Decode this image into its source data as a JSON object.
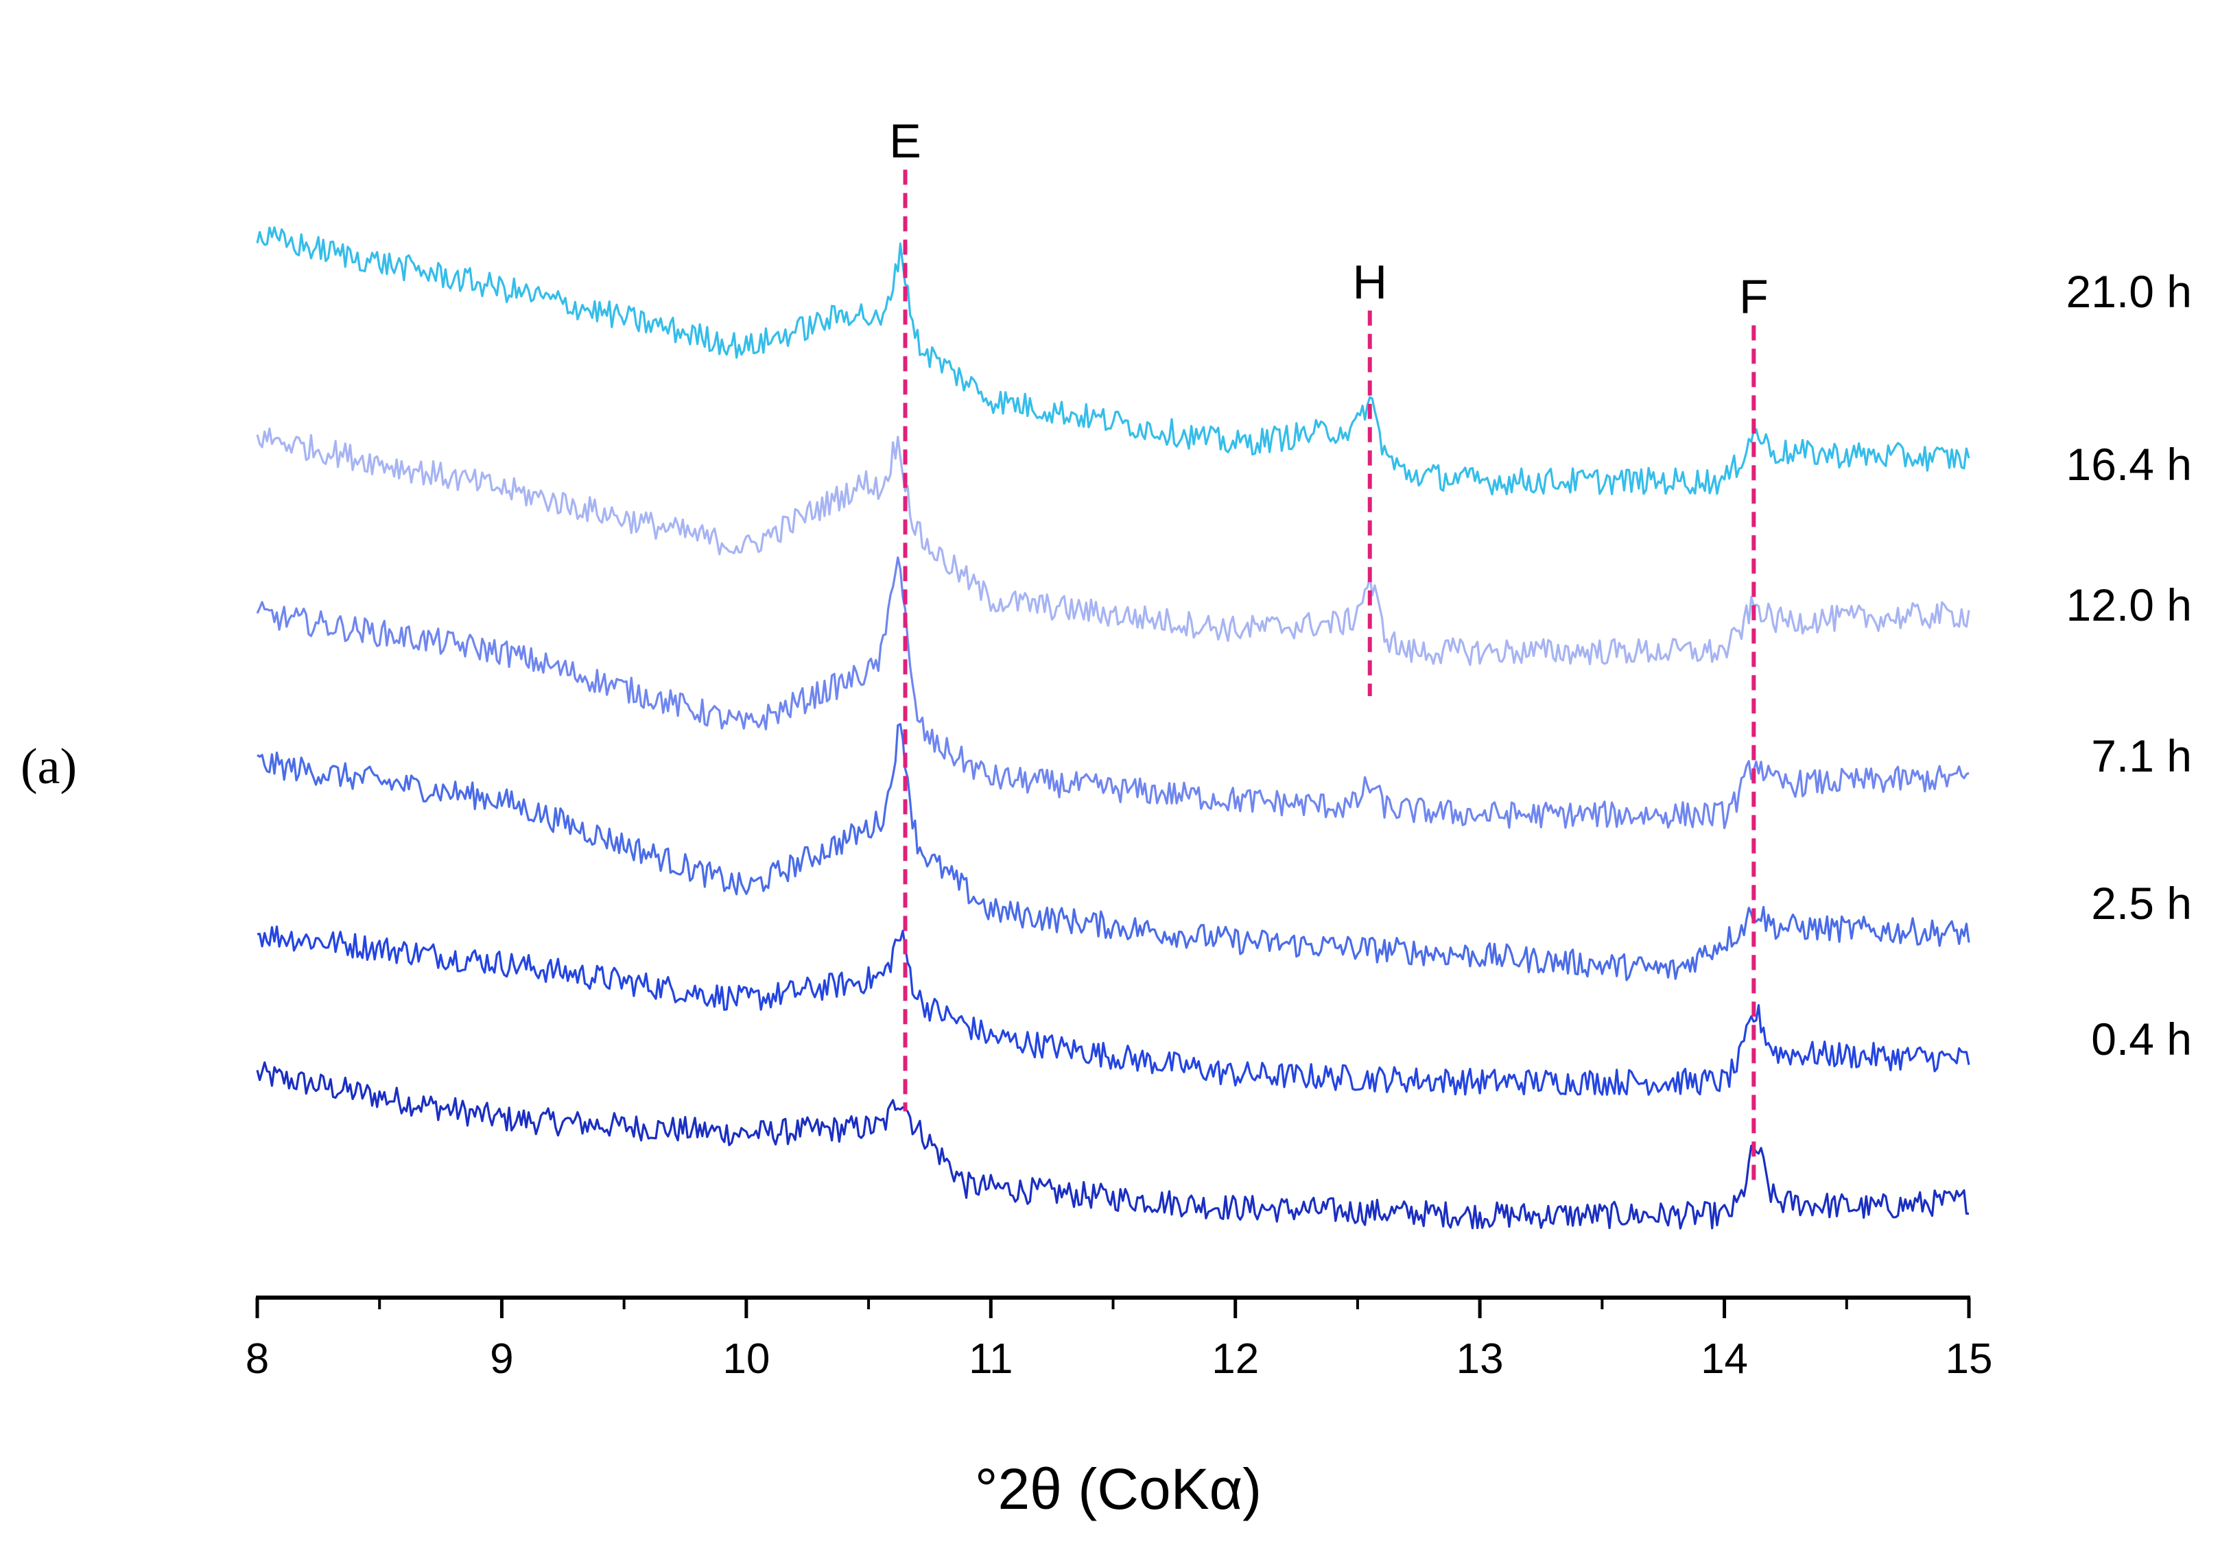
{
  "panel_label": "(a)",
  "chart_data": {
    "type": "line",
    "title": "",
    "xlabel": "°2θ (CoKα)",
    "ylabel": "",
    "xlim": [
      8,
      15
    ],
    "ylim": [
      0,
      8
    ],
    "x_ticks": [
      8,
      9,
      10,
      11,
      12,
      13,
      14,
      15
    ],
    "x_tick_labels": [
      "8",
      "9",
      "10",
      "11",
      "12",
      "13",
      "14",
      "15"
    ],
    "x_minor_tick_step": 0.5,
    "grid": false,
    "noise_amplitude": 0.09,
    "series": [
      {
        "name": "0.4 h",
        "color": "#1a2fc2",
        "opacity": 1.0,
        "profile": [
          [
            8,
            1.45
          ],
          [
            9,
            1.15
          ],
          [
            10,
            1.05
          ],
          [
            10.6,
            1.1
          ],
          [
            10.72,
            1.05
          ],
          [
            10.9,
            0.7
          ],
          [
            12,
            0.55
          ],
          [
            13,
            0.5
          ],
          [
            14,
            0.5
          ],
          [
            14.1,
            0.6
          ],
          [
            14.6,
            0.55
          ],
          [
            15,
            0.6
          ]
        ],
        "peaks": [
          {
            "x": 10.63,
            "h": 0.2
          },
          {
            "x": 14.13,
            "h": 0.35
          }
        ]
      },
      {
        "name": "2.5 h",
        "color": "#2445e0",
        "opacity": 1.0,
        "profile": [
          [
            8,
            2.4
          ],
          [
            9,
            2.2
          ],
          [
            10,
            1.95
          ],
          [
            10.55,
            2.1
          ],
          [
            10.75,
            1.9
          ],
          [
            11,
            1.7
          ],
          [
            12,
            1.45
          ],
          [
            13,
            1.4
          ],
          [
            14,
            1.4
          ],
          [
            14.1,
            1.6
          ],
          [
            15,
            1.55
          ]
        ],
        "peaks": [
          {
            "x": 10.63,
            "h": 0.35
          },
          {
            "x": 14.13,
            "h": 0.25
          }
        ]
      },
      {
        "name": "7.1 h",
        "color": "#4a6ce8",
        "opacity": 1.0,
        "profile": [
          [
            8,
            3.55
          ],
          [
            9,
            3.3
          ],
          [
            10,
            2.7
          ],
          [
            10.55,
            3.15
          ],
          [
            10.75,
            2.9
          ],
          [
            11,
            2.55
          ],
          [
            12,
            2.35
          ],
          [
            13,
            2.25
          ],
          [
            13.8,
            2.15
          ],
          [
            14.1,
            2.45
          ],
          [
            15,
            2.4
          ]
        ],
        "peaks": [
          {
            "x": 10.63,
            "h": 0.7
          },
          {
            "x": 14.13,
            "h": 0.1
          }
        ]
      },
      {
        "name": "12.0 h",
        "color": "#6f86ef",
        "opacity": 1.0,
        "profile": [
          [
            8,
            4.55
          ],
          [
            9,
            4.3
          ],
          [
            10,
            3.8
          ],
          [
            10.55,
            4.2
          ],
          [
            10.75,
            3.7
          ],
          [
            11,
            3.45
          ],
          [
            12,
            3.3
          ],
          [
            13,
            3.2
          ],
          [
            14,
            3.2
          ],
          [
            14.1,
            3.4
          ],
          [
            15,
            3.45
          ]
        ],
        "peaks": [
          {
            "x": 10.62,
            "h": 0.9
          },
          {
            "x": 12.55,
            "h": 0.15
          },
          {
            "x": 14.13,
            "h": 0.15
          }
        ]
      },
      {
        "name": "16.4 h",
        "color": "#a6b4f3",
        "opacity": 1.0,
        "profile": [
          [
            8,
            5.75
          ],
          [
            9,
            5.4
          ],
          [
            10,
            5.0
          ],
          [
            10.5,
            5.45
          ],
          [
            10.75,
            5.0
          ],
          [
            11,
            4.65
          ],
          [
            12,
            4.45
          ],
          [
            12.5,
            4.5
          ],
          [
            12.7,
            4.3
          ],
          [
            13,
            4.3
          ],
          [
            14,
            4.3
          ],
          [
            14.1,
            4.5
          ],
          [
            15,
            4.55
          ]
        ],
        "peaks": [
          {
            "x": 10.62,
            "h": 0.45
          },
          {
            "x": 12.55,
            "h": 0.3
          },
          {
            "x": 14.13,
            "h": 0.1
          }
        ]
      },
      {
        "name": "21.0 h",
        "color": "#35bdea",
        "opacity": 1.0,
        "profile": [
          [
            8,
            7.1
          ],
          [
            9,
            6.75
          ],
          [
            10,
            6.35
          ],
          [
            10.45,
            6.6
          ],
          [
            10.75,
            6.3
          ],
          [
            11,
            6.0
          ],
          [
            12,
            5.7
          ],
          [
            12.45,
            5.8
          ],
          [
            12.7,
            5.5
          ],
          [
            13,
            5.45
          ],
          [
            14,
            5.45
          ],
          [
            14.1,
            5.65
          ],
          [
            15,
            5.6
          ]
        ],
        "peaks": [
          {
            "x": 10.63,
            "h": 0.55
          },
          {
            "x": 12.55,
            "h": 0.3
          },
          {
            "x": 14.13,
            "h": 0.12
          }
        ]
      }
    ],
    "series_labels_order": [
      "21.0 h",
      "16.4 h",
      "12.0 h",
      "7.1 h",
      "2.5 h",
      "0.4 h"
    ],
    "peak_markers": [
      {
        "label": "E",
        "x": 10.65,
        "y_top": 7.55,
        "y_bottom": 1.2,
        "color": "#e0207a"
      },
      {
        "label": "H",
        "x": 12.55,
        "y_top": 6.6,
        "y_bottom": 4.0,
        "color": "#e0207a"
      },
      {
        "label": "F",
        "x": 14.12,
        "y_top": 6.5,
        "y_bottom": 0.7,
        "color": "#e0207a"
      }
    ]
  }
}
